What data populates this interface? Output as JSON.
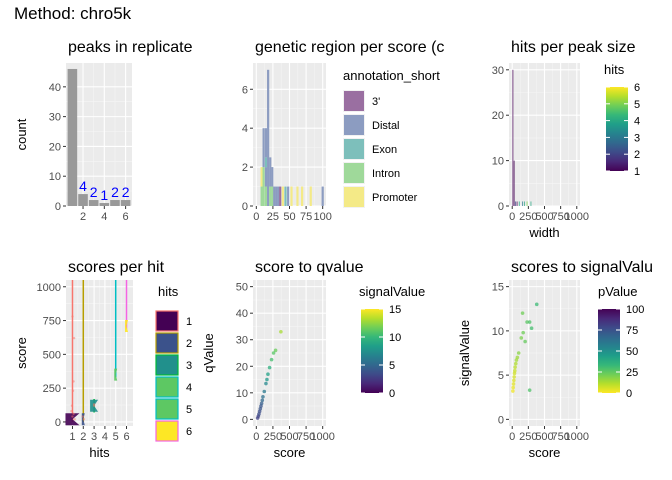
{
  "figure": {
    "title": "Method: chro5k"
  },
  "chart_data": [
    {
      "id": "p1",
      "type": "bar",
      "title": "peaks in replicate",
      "xlabel": "",
      "ylabel": "count",
      "xlim": [
        0.4,
        6.6
      ],
      "ylim": [
        0,
        48
      ],
      "x_ticks": [
        2,
        4,
        6
      ],
      "y_ticks": [
        0,
        10,
        20,
        30,
        40
      ],
      "grid": true,
      "categories": [
        1,
        2,
        3,
        4,
        5,
        6
      ],
      "values": [
        46,
        4,
        2,
        1,
        2,
        2
      ],
      "data_labels": [
        "",
        "4",
        "2",
        "1",
        "2",
        "2"
      ],
      "bar_color": "#999999",
      "label_color": "#0000ff"
    },
    {
      "id": "p2",
      "type": "bar",
      "title": "genetic region per score (c",
      "xlabel": "",
      "ylabel": "",
      "xlim": [
        -5,
        105
      ],
      "ylim": [
        0,
        7.35
      ],
      "x_ticks": [
        0,
        25,
        50,
        75,
        100
      ],
      "x_tick_labels": [
        "0",
        "25",
        "50",
        "75",
        "100"
      ],
      "y_ticks": [
        0,
        2,
        4,
        6
      ],
      "grid": true,
      "stacked": true,
      "legend": {
        "title": "annotation_short",
        "position": "right"
      },
      "series": [
        {
          "name": "3'",
          "color": "#9a6fa1"
        },
        {
          "name": "Distal",
          "color": "#8c9cc1"
        },
        {
          "name": "Exon",
          "color": "#7dbfbb"
        },
        {
          "name": "Intron",
          "color": "#9fd99a"
        },
        {
          "name": "Promoter",
          "color": "#f4ea87"
        }
      ],
      "bars": [
        {
          "x": 8,
          "w": 3.3,
          "stack": [
            [
              3,
              1
            ],
            [
              4,
              1
            ]
          ]
        },
        {
          "x": 11,
          "w": 3.3,
          "stack": [
            [
              3,
              2
            ],
            [
              1,
              2
            ]
          ]
        },
        {
          "x": 14.5,
          "w": 3.3,
          "stack": [
            [
              3,
              1
            ],
            [
              1,
              1
            ],
            [
              2,
              0.5
            ],
            [
              1,
              1.5
            ]
          ]
        },
        {
          "x": 17.8,
          "w": 3.3,
          "stack": [
            [
              1,
              7
            ]
          ]
        },
        {
          "x": 21,
          "w": 3.3,
          "stack": [
            [
              3,
              1
            ],
            [
              1,
              1.5
            ]
          ]
        },
        {
          "x": 24,
          "w": 3.3,
          "stack": [
            [
              3,
              1
            ],
            [
              1,
              1
            ]
          ]
        },
        {
          "x": 27,
          "w": 3.3,
          "stack": [
            [
              1,
              1
            ]
          ]
        },
        {
          "x": 30,
          "w": 3.3,
          "stack": [
            [
              1,
              1
            ]
          ]
        },
        {
          "x": 33,
          "w": 3.3,
          "stack": [
            [
              1,
              1
            ]
          ]
        },
        {
          "x": 36,
          "w": 3.3,
          "stack": [
            [
              0,
              1
            ]
          ]
        },
        {
          "x": 40,
          "w": 3.3,
          "stack": [
            [
              4,
              1
            ]
          ]
        },
        {
          "x": 44,
          "w": 3.3,
          "stack": [
            [
              2,
              1
            ]
          ]
        },
        {
          "x": 48,
          "w": 3.3,
          "stack": [
            [
              1,
              1
            ]
          ]
        },
        {
          "x": 53,
          "w": 3.3,
          "stack": [
            [
              4,
              1
            ]
          ]
        },
        {
          "x": 62,
          "w": 3.3,
          "stack": [
            [
              4,
              1
            ]
          ]
        },
        {
          "x": 69,
          "w": 3.3,
          "stack": [
            [
              4,
              1
            ]
          ]
        },
        {
          "x": 82,
          "w": 3.3,
          "stack": [
            [
              4,
              1
            ]
          ]
        },
        {
          "x": 100,
          "w": 3.3,
          "stack": [
            [
              1,
              1
            ]
          ]
        }
      ]
    },
    {
      "id": "p3",
      "type": "bar",
      "title": "hits per peak size",
      "xlabel": "width",
      "ylabel": "",
      "xlim": [
        -50,
        1050
      ],
      "ylim": [
        0,
        31.5
      ],
      "x_ticks": [
        0,
        250,
        500,
        750,
        1000
      ],
      "x_tick_labels": [
        "0",
        "250",
        "500",
        "750",
        "1000"
      ],
      "y_ticks": [
        0,
        10,
        20,
        30
      ],
      "grid": true,
      "legend": {
        "title": "hits",
        "position": "right",
        "type": "colorbar",
        "range": [
          1,
          6
        ],
        "ticks": [
          1,
          2,
          3,
          4,
          5,
          6
        ]
      },
      "bars": [
        {
          "x": 10,
          "value": 30,
          "hits": 1
        },
        {
          "x": 30,
          "value": 10,
          "hits": 1
        },
        {
          "x": 50,
          "value": 1,
          "hits": 2
        },
        {
          "x": 75,
          "value": 1,
          "hits": 1
        },
        {
          "x": 110,
          "value": 1,
          "hits": 4
        },
        {
          "x": 160,
          "value": 1,
          "hits": 3
        },
        {
          "x": 190,
          "value": 1,
          "hits": 4
        },
        {
          "x": 230,
          "value": 1,
          "hits": 5
        },
        {
          "x": 290,
          "value": 1,
          "hits": 4
        }
      ]
    },
    {
      "id": "p4",
      "type": "violin",
      "title": "scores per hit",
      "xlabel": "hits",
      "ylabel": "score",
      "xlim": [
        0.4,
        6.6
      ],
      "ylim": [
        -30,
        1050
      ],
      "x_ticks": [
        1,
        2,
        3,
        4,
        5,
        6
      ],
      "y_ticks": [
        0,
        250,
        500,
        750,
        1000
      ],
      "grid": true,
      "legend": {
        "title": "hits",
        "position": "right",
        "entries": [
          "1",
          "2",
          "3",
          "4",
          "5",
          "6"
        ]
      },
      "groups": [
        {
          "hits": 1,
          "min": 0,
          "max": 1050,
          "fill": "#440154",
          "line": "#f8766d"
        },
        {
          "hits": 2,
          "min": 0,
          "max": 1050,
          "fill": "#3b528b",
          "line": "#b79f00"
        },
        {
          "hits": 3,
          "min": 70,
          "max": 170,
          "fill": "#21908c",
          "line": "#00ba38"
        },
        {
          "hits": 5,
          "min": 330,
          "max": 1050,
          "fill": "#5dc863",
          "line": "#00bfc4"
        },
        {
          "hits": 6,
          "min": 690,
          "max": 1050,
          "fill": "#fde725",
          "line": "#f564e3"
        }
      ],
      "points": [
        {
          "x": 1.1,
          "y": 60
        },
        {
          "x": 1.0,
          "y": 40
        },
        {
          "x": 0.9,
          "y": 80
        },
        {
          "x": 1.2,
          "y": 20
        },
        {
          "x": 1.05,
          "y": 230
        },
        {
          "x": 1.0,
          "y": 780
        },
        {
          "x": 1.15,
          "y": 620
        },
        {
          "x": 0.95,
          "y": 120
        },
        {
          "x": 1.1,
          "y": 300
        },
        {
          "x": 1.95,
          "y": 40
        },
        {
          "x": 2.05,
          "y": 20
        },
        {
          "x": 3.0,
          "y": 120
        },
        {
          "x": 3.0,
          "y": 130
        }
      ]
    },
    {
      "id": "p5",
      "type": "scatter",
      "title": "score to qvalue",
      "xlabel": "score",
      "ylabel": "qValue",
      "xlim": [
        -50,
        1050
      ],
      "ylim": [
        -2.5,
        52.5
      ],
      "x_ticks": [
        0,
        250,
        500,
        750,
        1000
      ],
      "x_tick_labels": [
        "0",
        "250",
        "500",
        "750",
        "1000"
      ],
      "y_ticks": [
        0,
        10,
        20,
        30,
        40,
        50
      ],
      "grid": true,
      "legend": {
        "title": "signalValue",
        "position": "right",
        "type": "colorbar",
        "range": [
          0,
          15
        ],
        "ticks": [
          0,
          5,
          10,
          15
        ]
      },
      "points": [
        {
          "x": 20,
          "y": 0.5,
          "c": 3
        },
        {
          "x": 30,
          "y": 1.2,
          "c": 3
        },
        {
          "x": 40,
          "y": 2,
          "c": 3.5
        },
        {
          "x": 50,
          "y": 3,
          "c": 3.5
        },
        {
          "x": 60,
          "y": 4,
          "c": 4
        },
        {
          "x": 70,
          "y": 5,
          "c": 4
        },
        {
          "x": 80,
          "y": 6,
          "c": 4.5
        },
        {
          "x": 90,
          "y": 7.2,
          "c": 5
        },
        {
          "x": 100,
          "y": 8.5,
          "c": 5.5
        },
        {
          "x": 120,
          "y": 10.5,
          "c": 6
        },
        {
          "x": 145,
          "y": 13.5,
          "c": 7
        },
        {
          "x": 160,
          "y": 15,
          "c": 8
        },
        {
          "x": 175,
          "y": 17,
          "c": 8.5
        },
        {
          "x": 200,
          "y": 19.5,
          "c": 9.5
        },
        {
          "x": 230,
          "y": 22.5,
          "c": 10.5
        },
        {
          "x": 260,
          "y": 25,
          "c": 11
        },
        {
          "x": 290,
          "y": 26,
          "c": 11.5
        },
        {
          "x": 370,
          "y": 33,
          "c": 13
        }
      ]
    },
    {
      "id": "p6",
      "type": "scatter",
      "title": "scores to signalValu",
      "xlabel": "score",
      "ylabel": "signalValue",
      "xlim": [
        -50,
        1050
      ],
      "ylim": [
        -0.75,
        15.75
      ],
      "x_ticks": [
        0,
        250,
        500,
        750,
        1000
      ],
      "x_tick_labels": [
        "0",
        "250",
        "500",
        "750",
        "1000"
      ],
      "y_ticks": [
        0,
        5,
        10,
        15
      ],
      "grid": true,
      "legend": {
        "title": "pValue",
        "position": "right",
        "type": "colorbar",
        "range": [
          0,
          100
        ],
        "ticks": [
          0,
          25,
          50,
          75,
          100
        ]
      },
      "points": [
        {
          "x": 10,
          "y": 3.2,
          "c": 2
        },
        {
          "x": 15,
          "y": 3.6,
          "c": 3
        },
        {
          "x": 20,
          "y": 4.0,
          "c": 4
        },
        {
          "x": 25,
          "y": 4.4,
          "c": 5
        },
        {
          "x": 30,
          "y": 4.8,
          "c": 6
        },
        {
          "x": 35,
          "y": 5.2,
          "c": 7
        },
        {
          "x": 40,
          "y": 5.5,
          "c": 8
        },
        {
          "x": 45,
          "y": 5.9,
          "c": 10
        },
        {
          "x": 55,
          "y": 6.3,
          "c": 12
        },
        {
          "x": 65,
          "y": 6.7,
          "c": 14
        },
        {
          "x": 80,
          "y": 7.0,
          "c": 15
        },
        {
          "x": 100,
          "y": 7.5,
          "c": 18
        },
        {
          "x": 140,
          "y": 9.2,
          "c": 20
        },
        {
          "x": 170,
          "y": 9.8,
          "c": 22
        },
        {
          "x": 200,
          "y": 8.8,
          "c": 24
        },
        {
          "x": 230,
          "y": 11.0,
          "c": 26
        },
        {
          "x": 270,
          "y": 11.0,
          "c": 28
        },
        {
          "x": 300,
          "y": 10.3,
          "c": 30
        },
        {
          "x": 270,
          "y": 3.3,
          "c": 28
        },
        {
          "x": 380,
          "y": 13.0,
          "c": 32
        },
        {
          "x": 160,
          "y": 12.0,
          "c": 22
        }
      ]
    }
  ]
}
